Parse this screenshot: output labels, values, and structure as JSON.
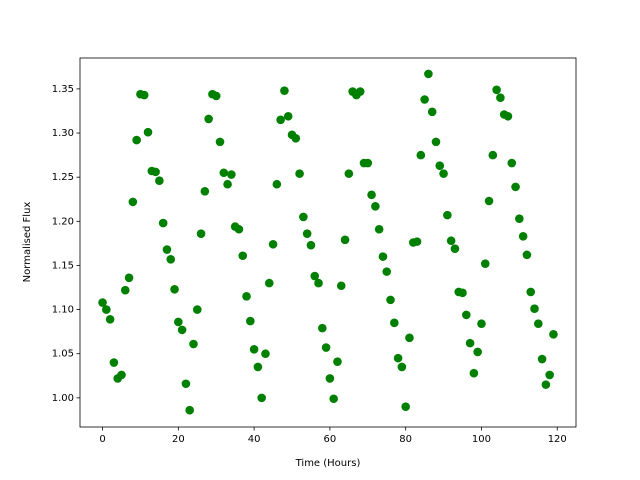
{
  "chart_data": {
    "type": "scatter",
    "xlabel": "Time (Hours)",
    "ylabel": "Normalised Flux",
    "color": "#008000",
    "x": [
      0,
      1,
      2,
      3,
      4,
      5,
      6,
      7,
      8,
      9,
      10,
      11,
      12,
      13,
      14,
      15,
      16,
      17,
      18,
      19,
      20,
      21,
      22,
      23,
      24,
      25,
      26,
      27,
      28,
      29,
      30,
      31,
      32,
      33,
      34,
      35,
      36,
      37,
      38,
      39,
      40,
      41,
      42,
      43,
      44,
      45,
      46,
      47,
      48,
      49,
      50,
      51,
      52,
      53,
      54,
      55,
      56,
      57,
      58,
      59,
      60,
      61,
      62,
      63,
      64,
      65,
      66,
      67,
      68,
      69,
      70,
      71,
      72,
      73,
      74,
      75,
      76,
      77,
      78,
      79,
      80,
      81,
      82,
      83,
      84,
      85,
      86,
      87,
      88,
      89,
      90,
      91,
      92,
      93,
      94,
      95,
      96,
      97,
      98,
      99,
      100,
      101,
      102,
      103,
      104,
      105,
      106,
      107,
      108,
      109,
      110,
      111,
      112,
      113,
      114,
      115,
      116,
      117,
      118,
      119
    ],
    "values": [
      1.108,
      1.1,
      1.089,
      1.04,
      1.022,
      1.026,
      1.122,
      1.136,
      1.222,
      1.292,
      1.344,
      1.343,
      1.301,
      1.257,
      1.256,
      1.246,
      1.198,
      1.168,
      1.157,
      1.123,
      1.086,
      1.077,
      1.016,
      0.986,
      1.061,
      1.1,
      1.186,
      1.234,
      1.316,
      1.344,
      1.342,
      1.29,
      1.255,
      1.242,
      1.253,
      1.194,
      1.191,
      1.161,
      1.115,
      1.087,
      1.055,
      1.035,
      1.0,
      1.05,
      1.13,
      1.174,
      1.242,
      1.315,
      1.348,
      1.319,
      1.298,
      1.294,
      1.254,
      1.205,
      1.186,
      1.173,
      1.138,
      1.13,
      1.079,
      1.057,
      1.022,
      0.999,
      1.041,
      1.127,
      1.179,
      1.254,
      1.347,
      1.343,
      1.347,
      1.266,
      1.266,
      1.23,
      1.217,
      1.191,
      1.16,
      1.143,
      1.111,
      1.085,
      1.045,
      1.035,
      0.99,
      1.068,
      1.176,
      1.177,
      1.275,
      1.338,
      1.367,
      1.324,
      1.29,
      1.263,
      1.254,
      1.207,
      1.178,
      1.169,
      1.12,
      1.119,
      1.094,
      1.062,
      1.028,
      1.052,
      1.084,
      1.152,
      1.223,
      1.275,
      1.349,
      1.34,
      1.321,
      1.319,
      1.266,
      1.239,
      1.203,
      1.183,
      1.162,
      1.12,
      1.101,
      1.084,
      1.044,
      1.015,
      1.026,
      1.072
    ],
    "xlim": [
      -5.95,
      124.95
    ],
    "ylim": [
      0.967,
      1.385
    ],
    "xticks": [
      0,
      20,
      40,
      60,
      80,
      100,
      120
    ],
    "yticks": [
      {
        "value": 1.0,
        "label": "1.00"
      },
      {
        "value": 1.05,
        "label": "1.05"
      },
      {
        "value": 1.1,
        "label": "1.10"
      },
      {
        "value": 1.15,
        "label": "1.15"
      },
      {
        "value": 1.2,
        "label": "1.20"
      },
      {
        "value": 1.25,
        "label": "1.25"
      },
      {
        "value": 1.3,
        "label": "1.30"
      },
      {
        "value": 1.35,
        "label": "1.35"
      }
    ]
  }
}
